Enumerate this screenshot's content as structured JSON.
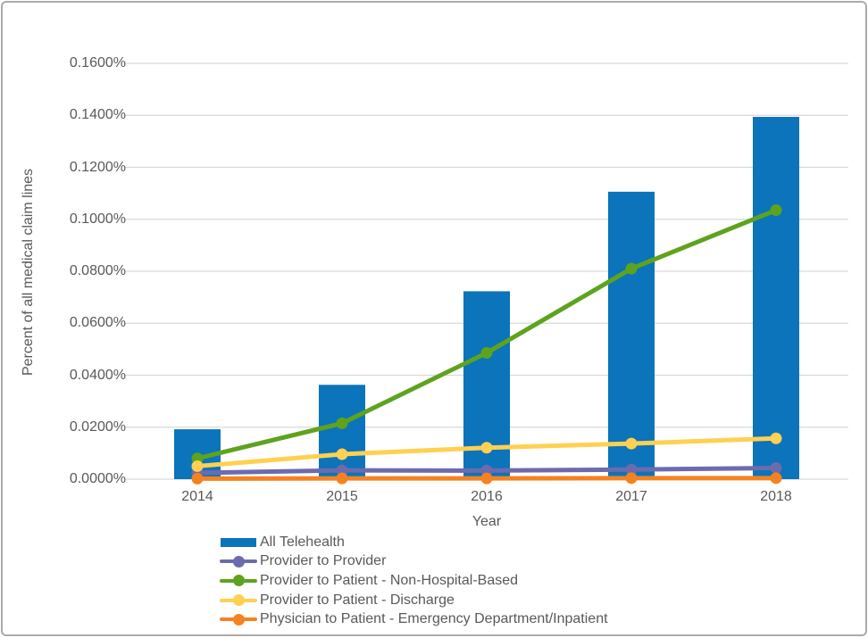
{
  "frame": {
    "border_color": "#ababab",
    "background": "#ffffff"
  },
  "text_color": "#595959",
  "gridline_color": "#d9d9d9",
  "chart_data": {
    "type": "combo-bar-line",
    "title": "",
    "xlabel": "Year",
    "ylabel": "Percent of all medical claim lines",
    "categories": [
      "2014",
      "2015",
      "2016",
      "2017",
      "2018"
    ],
    "ylim": [
      0,
      0.16
    ],
    "ytick_step": 0.02,
    "yticks": [
      "0.0000%",
      "0.0200%",
      "0.0400%",
      "0.0600%",
      "0.0800%",
      "0.1000%",
      "0.1200%",
      "0.1400%",
      "0.1600%"
    ],
    "grid": true,
    "legend_position": "bottom-left",
    "series": [
      {
        "name": "All Telehealth",
        "type": "bar",
        "color": "#0b74ba",
        "values": [
          0.0192,
          0.0363,
          0.0723,
          0.1106,
          0.1394
        ]
      },
      {
        "name": "Provider to Provider",
        "type": "line",
        "color": "#6c6bae",
        "values": [
          0.0024,
          0.0034,
          0.0033,
          0.0037,
          0.0043
        ]
      },
      {
        "name": "Provider to Patient - Non-Hospital-Based",
        "type": "line",
        "color": "#5ea31e",
        "values": [
          0.008,
          0.0215,
          0.0486,
          0.081,
          0.1035
        ]
      },
      {
        "name": "Provider to Patient - Discharge",
        "type": "line",
        "color": "#ffd051",
        "values": [
          0.005,
          0.0096,
          0.0121,
          0.0137,
          0.0157
        ]
      },
      {
        "name": "Physician to Patient - Emergency Department/Inpatient",
        "type": "line",
        "color": "#f58220",
        "values": [
          0.0002,
          0.0003,
          0.0003,
          0.0004,
          0.0004
        ]
      }
    ]
  }
}
